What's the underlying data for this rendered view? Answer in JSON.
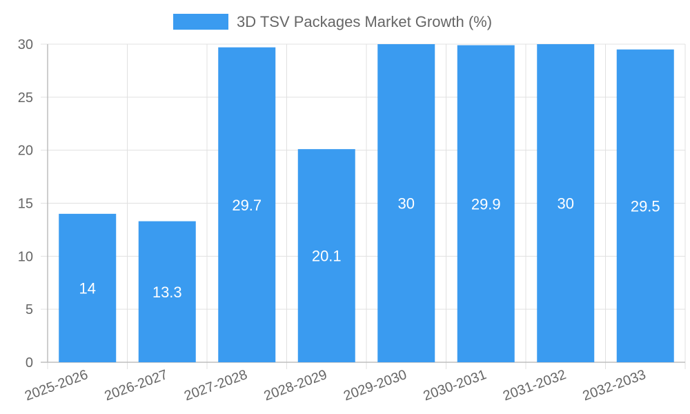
{
  "chart_data": {
    "type": "bar",
    "categories": [
      "2025-2026",
      "2026-2027",
      "2027-2028",
      "2028-2029",
      "2029-2030",
      "2030-2031",
      "2031-2032",
      "2032-2033"
    ],
    "series": [
      {
        "name": "3D TSV Packages Market Growth (%)",
        "values": [
          14,
          13.3,
          29.7,
          20.1,
          30,
          29.9,
          30,
          29.5
        ],
        "color": "#3a9bf0"
      }
    ],
    "data_labels": [
      "14",
      "13.3",
      "29.7",
      "20.1",
      "30",
      "29.9",
      "30",
      "29.5"
    ],
    "ylim": [
      0,
      30
    ],
    "y_ticks": [
      "0",
      "5",
      "10",
      "15",
      "20",
      "25",
      "30"
    ],
    "grid": true,
    "legend_position": "top"
  }
}
